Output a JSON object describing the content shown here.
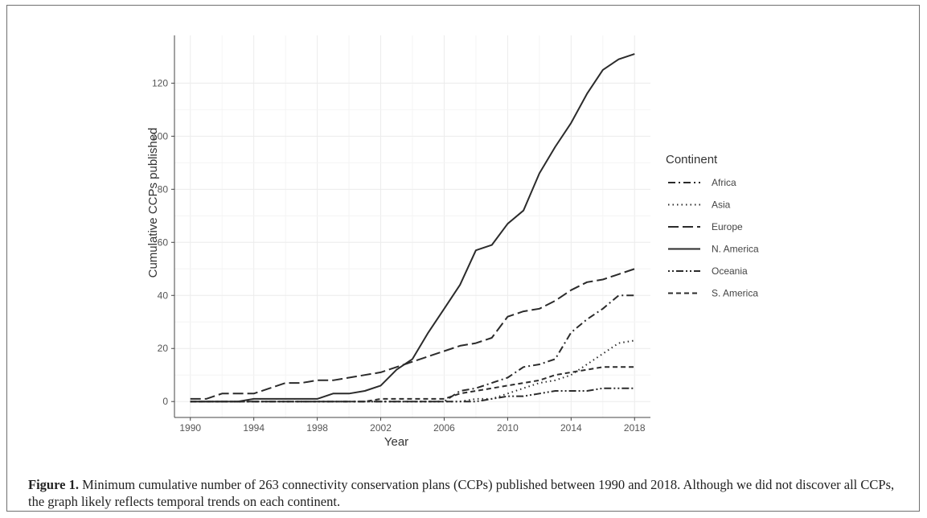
{
  "chart_data": {
    "type": "line",
    "title": "",
    "xlabel": "Year",
    "ylabel": "Cumulative CCPs published",
    "xlim": [
      1989,
      2019
    ],
    "ylim": [
      -6,
      138
    ],
    "x_ticks": [
      1990,
      1994,
      1998,
      2002,
      2006,
      2010,
      2014,
      2018
    ],
    "y_ticks": [
      0,
      20,
      40,
      60,
      80,
      100,
      120
    ],
    "grid": true,
    "legend_title": "Continent",
    "legend_position": "right",
    "x": [
      1990,
      1991,
      1992,
      1993,
      1994,
      1995,
      1996,
      1997,
      1998,
      1999,
      2000,
      2001,
      2002,
      2003,
      2004,
      2005,
      2006,
      2007,
      2008,
      2009,
      2010,
      2011,
      2012,
      2013,
      2014,
      2015,
      2016,
      2017,
      2018
    ],
    "series": [
      {
        "name": "Africa",
        "dash": "dashdot",
        "values": [
          0,
          0,
          0,
          0,
          0,
          0,
          0,
          0,
          0,
          0,
          0,
          0,
          0,
          0,
          0,
          0,
          0,
          4,
          5,
          7,
          9,
          13,
          14,
          16,
          26,
          31,
          35,
          40,
          40
        ]
      },
      {
        "name": "Asia",
        "dash": "dotted",
        "values": [
          0,
          0,
          0,
          0,
          0,
          0,
          0,
          0,
          0,
          0,
          0,
          0,
          0,
          0,
          0,
          0,
          0,
          0,
          1,
          1,
          3,
          5,
          7,
          8,
          10,
          14,
          18,
          22,
          23
        ]
      },
      {
        "name": "Europe",
        "dash": "longdash",
        "values": [
          1,
          1,
          3,
          3,
          3,
          5,
          7,
          7,
          8,
          8,
          9,
          10,
          11,
          13,
          15,
          17,
          19,
          21,
          22,
          24,
          32,
          34,
          35,
          38,
          42,
          45,
          46,
          48,
          50
        ]
      },
      {
        "name": "N. America",
        "dash": "solid",
        "values": [
          0,
          0,
          0,
          0,
          1,
          1,
          1,
          1,
          1,
          3,
          3,
          4,
          6,
          12,
          16,
          26,
          35,
          44,
          57,
          59,
          67,
          72,
          86,
          96,
          105,
          116,
          125,
          129,
          131
        ]
      },
      {
        "name": "Oceania",
        "dash": "dotdotdash",
        "values": [
          0,
          0,
          0,
          0,
          0,
          0,
          0,
          0,
          0,
          0,
          0,
          0,
          0,
          0,
          0,
          0,
          0,
          0,
          0,
          1,
          2,
          2,
          3,
          4,
          4,
          4,
          5,
          5,
          5
        ]
      },
      {
        "name": "S. America",
        "dash": "dashed",
        "values": [
          0,
          0,
          0,
          0,
          0,
          0,
          0,
          0,
          0,
          0,
          0,
          0,
          1,
          1,
          1,
          1,
          1,
          3,
          4,
          5,
          6,
          7,
          8,
          10,
          11,
          12,
          13,
          13,
          13
        ]
      }
    ]
  },
  "caption": {
    "lead": "Figure 1.",
    "text": " Minimum cumulative number of 263 connectivity conservation plans (CCPs) published between 1990 and 2018. Although we did not discover all CCPs, the graph likely reflects temporal trends on each continent."
  },
  "colors": {
    "line": "#2b2b2b",
    "grid": "#ececec",
    "axis": "#444444"
  }
}
